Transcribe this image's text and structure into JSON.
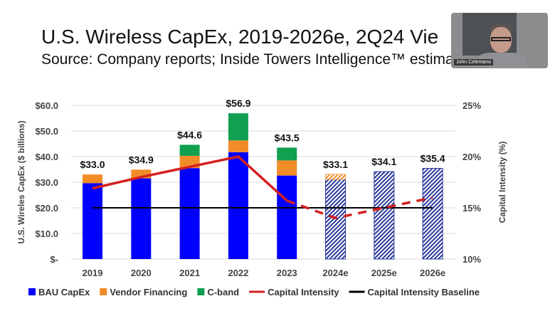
{
  "slide": {
    "title": "U.S. Wireless CapEx, 2019-2026e, 2Q24 Vie",
    "subtitle": "Source: Company reports; Inside Towers Intelligence™ estima"
  },
  "video": {
    "participant_name": "John Celentano"
  },
  "chart_data": {
    "type": "bar",
    "stacked": true,
    "categories": [
      "2019",
      "2020",
      "2021",
      "2022",
      "2023",
      "2024e",
      "2025e",
      "2026e"
    ],
    "series": [
      {
        "name": "BAU CapEx",
        "color": "#0000ff",
        "values": [
          29.6,
          31.5,
          35.5,
          41.7,
          32.6,
          31.1,
          34.1,
          35.4
        ]
      },
      {
        "name": "Vendor Financing",
        "color": "#f28c28",
        "values": [
          3.4,
          3.4,
          4.8,
          4.6,
          5.9,
          2.0,
          0,
          0
        ]
      },
      {
        "name": "C-band",
        "color": "#10a050",
        "values": [
          0,
          0,
          4.3,
          10.6,
          5.0,
          0,
          0,
          0
        ]
      }
    ],
    "estimate_categories": [
      "2024e",
      "2025e",
      "2026e"
    ],
    "totals": [
      "$33.0",
      "$34.9",
      "$44.6",
      "$56.9",
      "$43.5",
      "$33.1",
      "$34.1",
      "$35.4"
    ],
    "lines": [
      {
        "name": "Capital Intensity",
        "color": "#d42020",
        "axis": "right",
        "values": [
          16.9,
          18.0,
          19.0,
          20.0,
          15.7,
          14.0,
          15.0,
          16.0
        ],
        "dashed_from": "2023"
      },
      {
        "name": "Capital Intensity Baseline",
        "color": "#000000",
        "axis": "right",
        "values": [
          15,
          15,
          15,
          15,
          15,
          15,
          15,
          15
        ]
      }
    ],
    "ylabel": "U.S. Wireles CapEx ($ billions)",
    "y2label": "Capital Intensity (%)",
    "ylim": [
      0,
      60
    ],
    "y2lim": [
      10,
      25
    ],
    "yticks": [
      "$-",
      "$10.0",
      "$20.0",
      "$30.0",
      "$40.0",
      "$50.0",
      "$60.0"
    ],
    "y2ticks": [
      "10%",
      "15%",
      "20%",
      "25%"
    ],
    "grid": true,
    "legend_position": "bottom",
    "legend": [
      "BAU CapEx",
      "Vendor Financing",
      "C-band",
      "Capital Intensity",
      "Capital Intensity Baseline"
    ]
  }
}
